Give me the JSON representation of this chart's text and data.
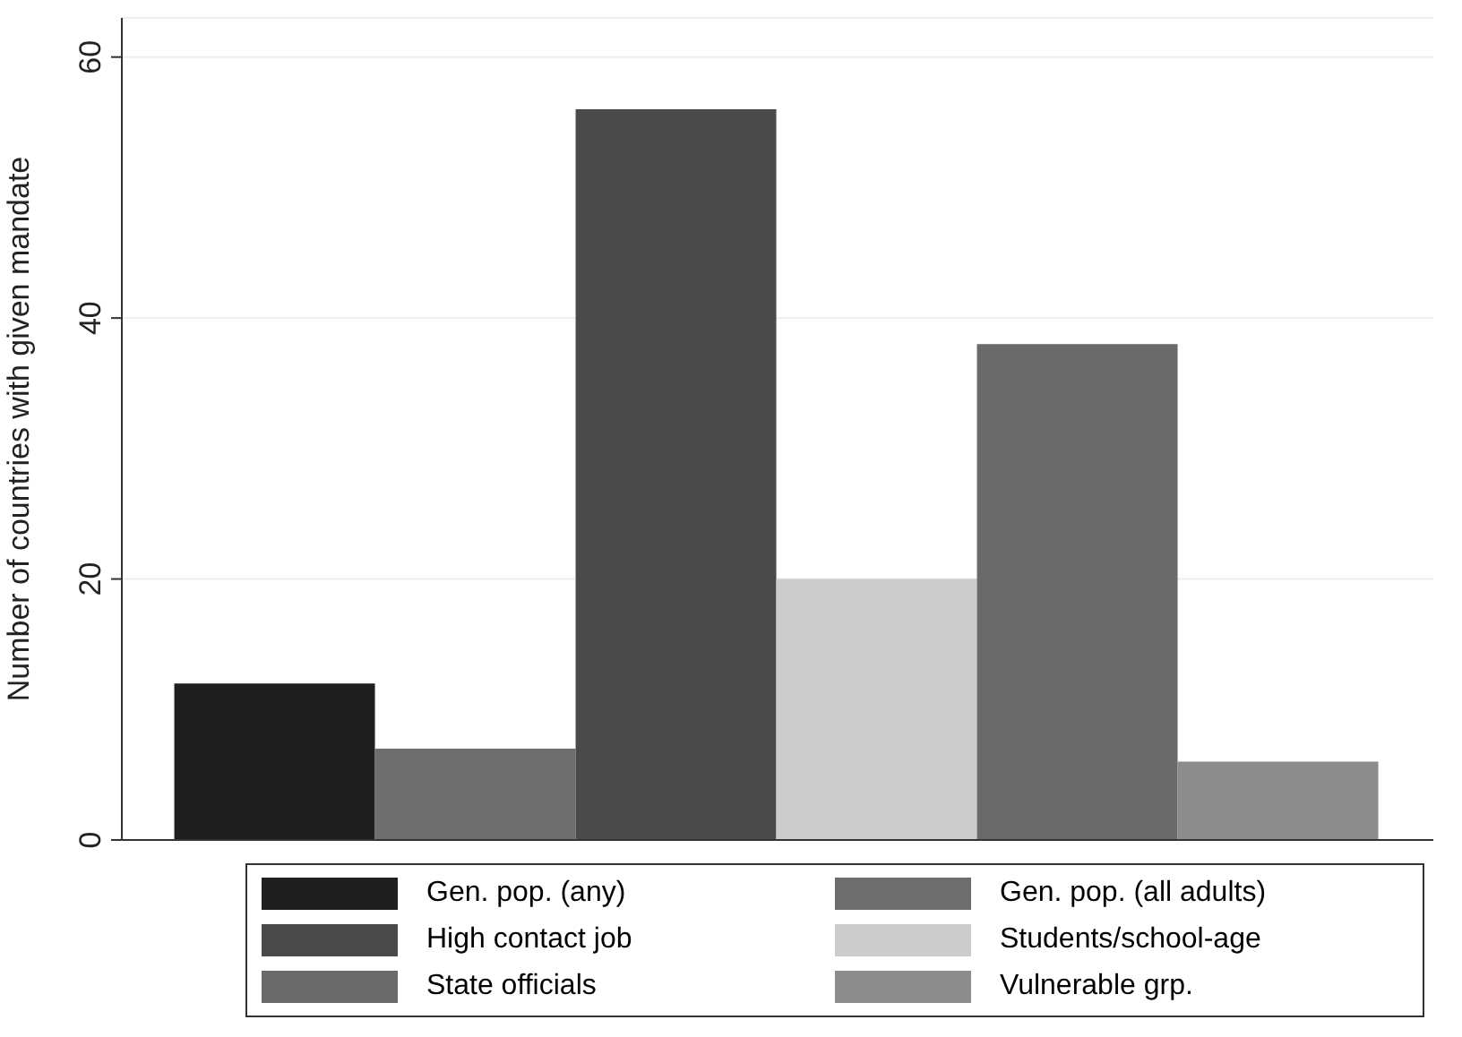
{
  "chart_data": {
    "type": "bar",
    "ylabel": "Number of countries with given mandate",
    "categories": [
      null
    ],
    "series": [
      {
        "name": "Gen. pop. (any)",
        "color": "#1f1f1f",
        "values": [
          12
        ]
      },
      {
        "name": "Gen. pop. (all adults)",
        "color": "#6e6e6e",
        "values": [
          7
        ]
      },
      {
        "name": "High contact job",
        "color": "#4a4a4a",
        "values": [
          56
        ]
      },
      {
        "name": "Students/school-age",
        "color": "#cccccc",
        "values": [
          20
        ]
      },
      {
        "name": "State officials",
        "color": "#6a6a6a",
        "values": [
          38
        ]
      },
      {
        "name": "Vulnerable grp.",
        "color": "#8c8c8c",
        "values": [
          6
        ]
      }
    ],
    "ylim": [
      0,
      63
    ],
    "yticks": [
      0,
      20,
      40,
      60
    ],
    "grid": "y",
    "legend": "bottom",
    "tick_labels": "y"
  }
}
